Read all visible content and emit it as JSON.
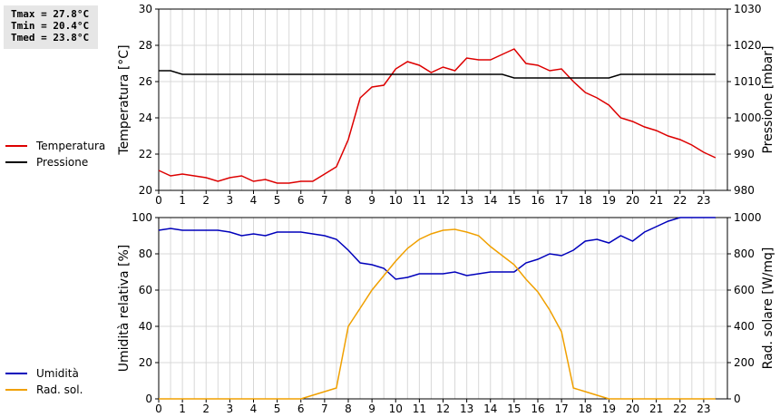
{
  "stats": {
    "tmax": "Tmax = 27.8°C",
    "tmin": "Tmin = 20.4°C",
    "tmed": "Tmed = 23.8°C"
  },
  "legend_top": [
    {
      "label": "Temperatura",
      "color": "#dd0000"
    },
    {
      "label": "Pressione",
      "color": "#000000"
    }
  ],
  "legend_bottom": [
    {
      "label": "Umidità",
      "color": "#0000bb"
    },
    {
      "label": "Rad. sol.",
      "color": "#f0a000"
    }
  ],
  "chart_data": [
    {
      "type": "line",
      "x": [
        0,
        0.5,
        1,
        1.5,
        2,
        2.5,
        3,
        3.5,
        4,
        4.5,
        5,
        5.5,
        6,
        6.5,
        7,
        7.5,
        8,
        8.5,
        9,
        9.5,
        10,
        10.5,
        11,
        11.5,
        12,
        12.5,
        13,
        13.5,
        14,
        14.5,
        15,
        15.5,
        16,
        16.5,
        17,
        17.5,
        18,
        18.5,
        19,
        19.5,
        20,
        20.5,
        21,
        21.5,
        22,
        22.5,
        23,
        23.5
      ],
      "xlim": [
        0,
        24
      ],
      "xticks": [
        "0",
        "1",
        "2",
        "3",
        "4",
        "5",
        "6",
        "7",
        "8",
        "9",
        "10",
        "11",
        "12",
        "13",
        "14",
        "15",
        "16",
        "17",
        "18",
        "19",
        "20",
        "21",
        "22",
        "23"
      ],
      "ylabel": "Temperatura [°C]",
      "ylim": [
        20,
        30
      ],
      "yticks": [
        "20",
        "22",
        "24",
        "26",
        "28",
        "30"
      ],
      "y2label": "Pressione [mbar]",
      "y2lim": [
        980,
        1030
      ],
      "y2ticks": [
        "980",
        "990",
        "1000",
        "1010",
        "1020",
        "1030"
      ],
      "grid": true,
      "series": [
        {
          "name": "Temperatura",
          "axis": "left",
          "color": "#dd0000",
          "values": [
            21.1,
            20.8,
            20.9,
            20.8,
            20.7,
            20.5,
            20.7,
            20.8,
            20.5,
            20.6,
            20.4,
            20.4,
            20.5,
            20.5,
            20.9,
            21.3,
            22.8,
            25.1,
            25.7,
            25.8,
            26.7,
            27.1,
            26.9,
            26.5,
            26.8,
            26.6,
            27.3,
            27.2,
            27.2,
            27.5,
            27.8,
            27.0,
            26.9,
            26.6,
            26.7,
            26.0,
            25.4,
            25.1,
            24.7,
            24.0,
            23.8,
            23.5,
            23.3,
            23.0,
            22.8,
            22.5,
            22.1,
            21.8
          ]
        },
        {
          "name": "Pressione",
          "axis": "right",
          "color": "#000000",
          "values": [
            1013,
            1013,
            1012,
            1012,
            1012,
            1012,
            1012,
            1012,
            1012,
            1012,
            1012,
            1012,
            1012,
            1012,
            1012,
            1012,
            1012,
            1012,
            1012,
            1012,
            1012,
            1012,
            1012,
            1012,
            1012,
            1012,
            1012,
            1012,
            1012,
            1012,
            1011,
            1011,
            1011,
            1011,
            1011,
            1011,
            1011,
            1011,
            1011,
            1012,
            1012,
            1012,
            1012,
            1012,
            1012,
            1012,
            1012,
            1012
          ]
        }
      ]
    },
    {
      "type": "line",
      "x": [
        0,
        0.5,
        1,
        1.5,
        2,
        2.5,
        3,
        3.5,
        4,
        4.5,
        5,
        5.5,
        6,
        6.5,
        7,
        7.5,
        8,
        8.5,
        9,
        9.5,
        10,
        10.5,
        11,
        11.5,
        12,
        12.5,
        13,
        13.5,
        14,
        14.5,
        15,
        15.5,
        16,
        16.5,
        17,
        17.5,
        18,
        18.5,
        19,
        19.5,
        20,
        20.5,
        21,
        21.5,
        22,
        22.5,
        23,
        23.5
      ],
      "xlim": [
        0,
        24
      ],
      "xticks": [
        "0",
        "1",
        "2",
        "3",
        "4",
        "5",
        "6",
        "7",
        "8",
        "9",
        "10",
        "11",
        "12",
        "13",
        "14",
        "15",
        "16",
        "17",
        "18",
        "19",
        "20",
        "21",
        "22",
        "23"
      ],
      "ylabel": "Umidità relativa [%]",
      "ylim": [
        0,
        100
      ],
      "yticks": [
        "0",
        "20",
        "40",
        "60",
        "80",
        "100"
      ],
      "y2label": "Rad. solare [W/mq]",
      "y2lim": [
        0,
        1000
      ],
      "y2ticks": [
        "0",
        "200",
        "400",
        "600",
        "800",
        "1000"
      ],
      "grid": true,
      "series": [
        {
          "name": "Umidità",
          "axis": "left",
          "color": "#0000bb",
          "values": [
            93,
            94,
            93,
            93,
            93,
            93,
            92,
            90,
            91,
            90,
            92,
            92,
            92,
            91,
            90,
            88,
            82,
            75,
            74,
            72,
            66,
            67,
            69,
            69,
            69,
            70,
            68,
            69,
            70,
            70,
            70,
            75,
            77,
            80,
            79,
            82,
            87,
            88,
            86,
            90,
            87,
            92,
            95,
            98,
            100,
            100,
            100,
            100
          ]
        },
        {
          "name": "Rad. sol.",
          "axis": "right",
          "color": "#f0a000",
          "values": [
            0,
            0,
            0,
            0,
            0,
            0,
            0,
            0,
            0,
            0,
            0,
            0,
            0,
            20,
            40,
            60,
            400,
            500,
            600,
            680,
            760,
            830,
            880,
            910,
            930,
            935,
            920,
            900,
            840,
            790,
            740,
            660,
            590,
            490,
            370,
            60,
            40,
            20,
            0,
            0,
            0,
            0,
            0,
            0,
            0,
            0,
            0,
            0
          ]
        }
      ]
    }
  ]
}
